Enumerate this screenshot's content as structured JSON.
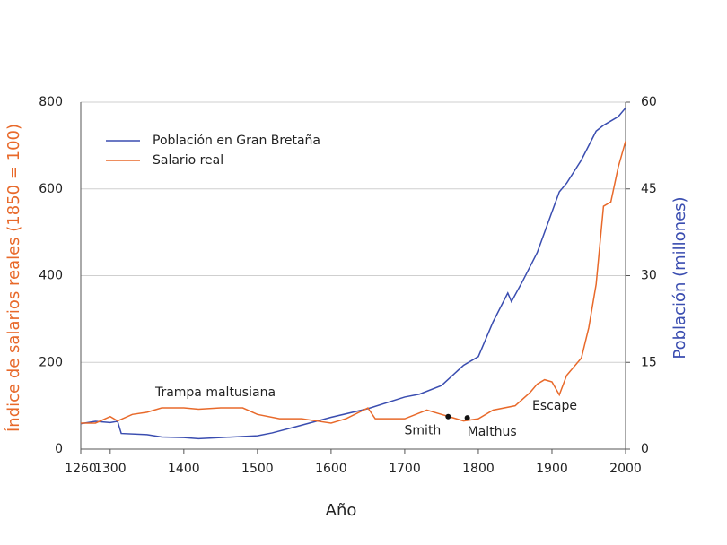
{
  "chart_data": {
    "type": "line",
    "xlabel": "Año",
    "ylabel": "Índice de salarios reales (1850 = 100)",
    "y2label": "Población (millones)",
    "xlim": [
      1260,
      2000
    ],
    "xticks": [
      1260,
      1300,
      1400,
      1500,
      1600,
      1700,
      1800,
      1900,
      2000
    ],
    "ylim": [
      0,
      800
    ],
    "yticks": [
      0,
      200,
      400,
      600,
      800
    ],
    "y2lim": [
      0,
      60
    ],
    "y2ticks": [
      0,
      15,
      30,
      45,
      60
    ],
    "grid": true,
    "series": [
      {
        "name": "Población en Gran Bretaña",
        "color": "#3a4db0",
        "axis": "y2",
        "x": [
          1260,
          1280,
          1300,
          1310,
          1315,
          1350,
          1370,
          1400,
          1420,
          1450,
          1500,
          1520,
          1550,
          1600,
          1650,
          1700,
          1720,
          1750,
          1780,
          1800,
          1820,
          1840,
          1845,
          1860,
          1880,
          1900,
          1910,
          1920,
          1940,
          1960,
          1970,
          1990,
          2000
        ],
        "values": [
          4.4,
          4.8,
          4.6,
          4.8,
          2.7,
          2.5,
          2.1,
          2.0,
          1.8,
          2.0,
          2.3,
          2.8,
          3.8,
          5.5,
          7.0,
          9.0,
          9.5,
          11.0,
          14.5,
          16.0,
          22.0,
          27.0,
          25.5,
          29.0,
          34.0,
          41.0,
          44.5,
          46.0,
          50.0,
          55.0,
          56.0,
          57.5,
          59.0
        ]
      },
      {
        "name": "Salario real",
        "color": "#e8692a",
        "x": [
          1260,
          1280,
          1300,
          1310,
          1330,
          1350,
          1370,
          1400,
          1420,
          1450,
          1480,
          1500,
          1530,
          1560,
          1580,
          1600,
          1620,
          1650,
          1660,
          1700,
          1730,
          1750,
          1770,
          1780,
          1800,
          1820,
          1850,
          1870,
          1880,
          1890,
          1900,
          1910,
          1920,
          1940,
          1950,
          1960,
          1970,
          1980,
          1990,
          2000
        ],
        "values": [
          60,
          60,
          75,
          65,
          80,
          85,
          95,
          95,
          92,
          95,
          95,
          80,
          70,
          70,
          65,
          60,
          70,
          95,
          70,
          70,
          90,
          80,
          70,
          65,
          70,
          90,
          100,
          130,
          150,
          160,
          155,
          125,
          170,
          210,
          280,
          380,
          560,
          570,
          650,
          710
        ]
      }
    ],
    "points": [
      {
        "label": "Smith",
        "x": 1759,
        "y": 75
      },
      {
        "label": "Malthus",
        "x": 1785,
        "y": 72
      }
    ],
    "annotations": [
      "Trampa maltusiana",
      "Escape"
    ]
  }
}
